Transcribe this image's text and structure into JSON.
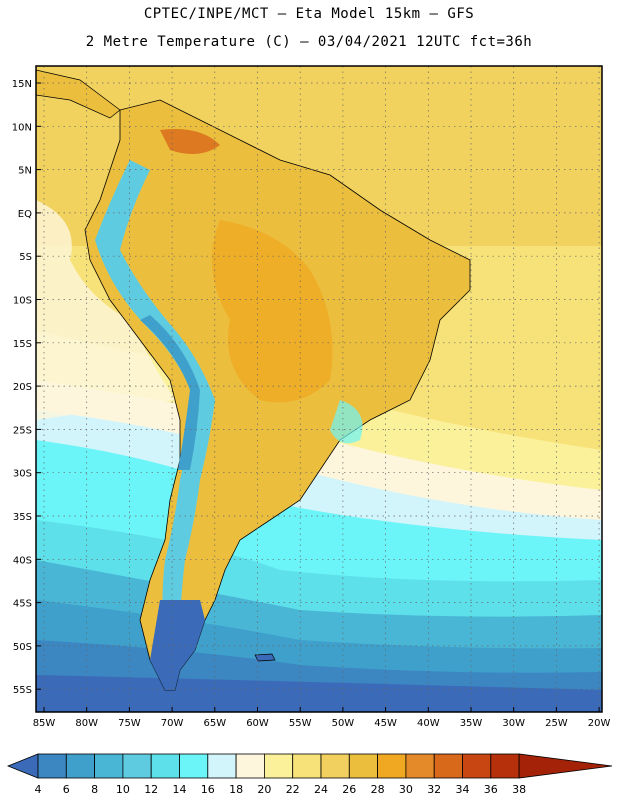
{
  "header": {
    "line1": "CPTEC/INPE/MCT –  Eta Model 15km – GFS",
    "line2": "2 Metre Temperature (C) – 03/04/2021 12UTC fct=36h"
  },
  "axes": {
    "lat_labels": [
      "15N",
      "10N",
      "5N",
      "EQ",
      "5S",
      "10S",
      "15S",
      "20S",
      "25S",
      "30S",
      "35S",
      "40S",
      "45S",
      "50S",
      "55S"
    ],
    "lon_labels": [
      "85W",
      "80W",
      "75W",
      "70W",
      "65W",
      "60W",
      "55W",
      "50W",
      "45W",
      "40W",
      "35W",
      "30W",
      "25W",
      "20W"
    ]
  },
  "colorbar": {
    "levels": [
      "4",
      "6",
      "8",
      "10",
      "12",
      "14",
      "16",
      "18",
      "20",
      "22",
      "24",
      "26",
      "28",
      "30",
      "32",
      "34",
      "36",
      "38"
    ],
    "colors": [
      "#3b6bb8",
      "#3c86c2",
      "#3fa0cc",
      "#4ab6d6",
      "#5fcbe0",
      "#5ee0ea",
      "#6cf5f8",
      "#d2f4fb",
      "#fdf6dc",
      "#fbf19a",
      "#f7e27a",
      "#f1d060",
      "#ecbe3e",
      "#f0a822",
      "#e58a28",
      "#d8681a",
      "#c84612",
      "#b6300c",
      "#a42308"
    ]
  },
  "map": {
    "ocean_colors": {
      "cold_deep": "#2f5fa8",
      "cold": "#3c86c2",
      "mid": "#4ab6d6",
      "cool": "#5ee0ea",
      "mild": "#d2f4fb",
      "neutral": "#fdf6dc",
      "warm": "#f7e27a",
      "warmer": "#ecbe3e"
    },
    "land_colors": {
      "hot": "#f0a822",
      "warm": "#ecbe3e",
      "andes": "#5fcbe0",
      "andes_high": "#3fa0cc",
      "patagonia": "#2f5fa8"
    }
  }
}
